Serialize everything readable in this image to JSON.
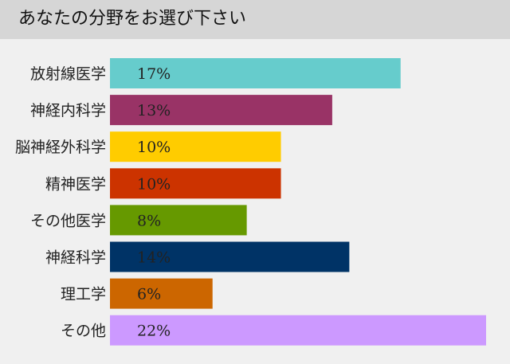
{
  "header": {
    "title": "あなたの分野をお選び下さい"
  },
  "chart_data": {
    "type": "bar",
    "orientation": "horizontal",
    "title": "あなたの分野をお選び下さい",
    "categories": [
      "放射線医学",
      "神経内科学",
      "脳神経外科学",
      "精神医学",
      "その他医学",
      "神経科学",
      "理工学",
      "その他"
    ],
    "values": [
      17,
      13,
      10,
      10,
      8,
      14,
      6,
      22
    ],
    "value_labels": [
      "17%",
      "13%",
      "10%",
      "10%",
      "8%",
      "14%",
      "6%",
      "22%"
    ],
    "colors": [
      "#66cccc",
      "#993366",
      "#ffcc00",
      "#cc3300",
      "#669900",
      "#003366",
      "#cc6600",
      "#cc99ff"
    ],
    "xlim": [
      0,
      22
    ],
    "grid": false,
    "legend": "none"
  }
}
